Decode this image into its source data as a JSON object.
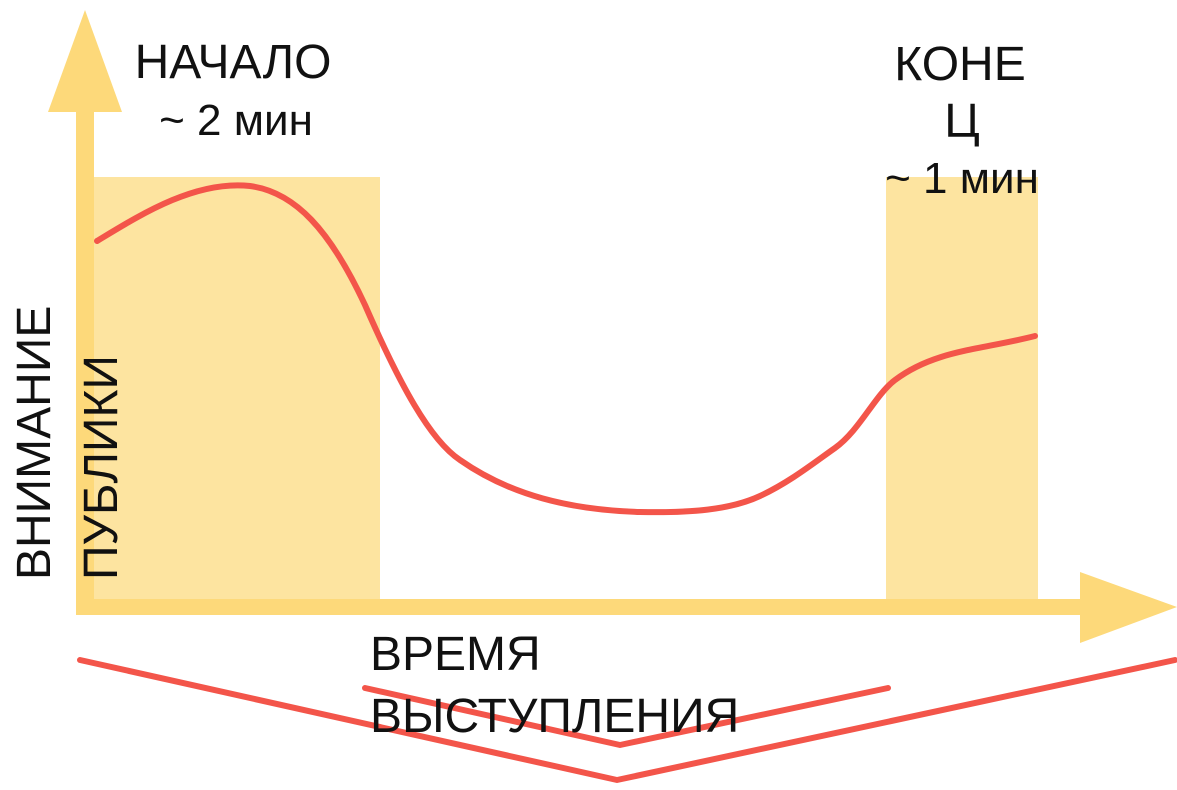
{
  "colors": {
    "axis": "#fdd97a",
    "highlight": "#fde4a0",
    "curve": "#f3554a",
    "text": "#111111"
  },
  "labels": {
    "start_title": "НАЧАЛО",
    "start_duration": "~ 2 мин",
    "end_title_line1": "КОНЕ",
    "end_title_line2": "Ц",
    "end_duration": "~ 1 мин",
    "y_axis_line1": "ВНИМАНИЕ",
    "y_axis_line2": "ПУБЛИКИ",
    "x_axis_line1": "ВРЕМЯ",
    "x_axis_line2": "ВЫСТУПЛЕНИЯ"
  }
}
